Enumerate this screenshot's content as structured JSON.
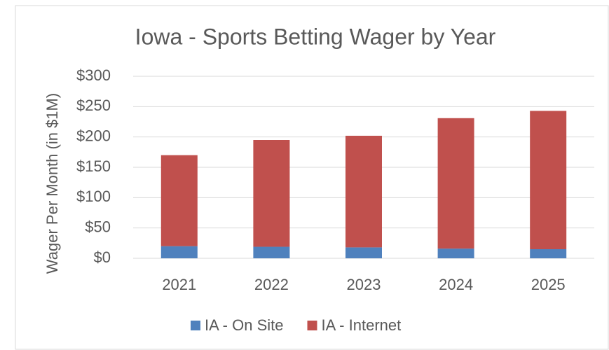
{
  "chart_data": {
    "type": "stacked_bar",
    "title": "Iowa - Sports Betting Wager by Year",
    "y_label": "Wager Per Month (in $1M)",
    "categories": [
      "2021",
      "2022",
      "2023",
      "2024",
      "2025"
    ],
    "series": [
      {
        "name": "IA - On Site",
        "color": "#4f81bd",
        "values": [
          20,
          19,
          18,
          16,
          15
        ]
      },
      {
        "name": "IA - Internet",
        "color": "#c0504d",
        "values": [
          150,
          176,
          184,
          215,
          228
        ]
      }
    ],
    "ylim": [
      0,
      300
    ],
    "yticks": [
      {
        "value": 0,
        "label": "$0"
      },
      {
        "value": 50,
        "label": "$50"
      },
      {
        "value": 100,
        "label": "$100"
      },
      {
        "value": 150,
        "label": "$150"
      },
      {
        "value": 200,
        "label": "$200"
      },
      {
        "value": 250,
        "label": "$250"
      },
      {
        "value": 300,
        "label": "$300"
      }
    ],
    "grid": true,
    "legend": "bottom"
  }
}
